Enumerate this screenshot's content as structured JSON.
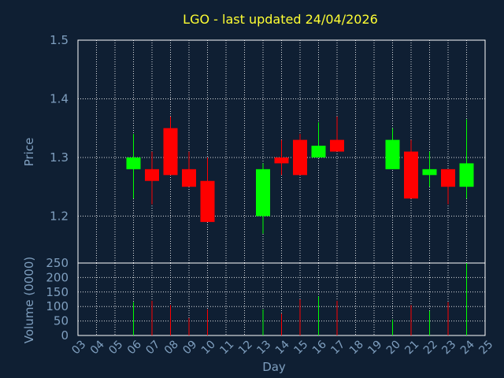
{
  "chart_data": {
    "type": "candlestick",
    "title": "LGO - last updated 24/04/2026",
    "xlabel": "Day",
    "price_panel": {
      "ylabel": "Price",
      "ylim": [
        1.12,
        1.5
      ],
      "yticks": [
        "1.2",
        "1.3",
        "1.4",
        "1.5"
      ],
      "ytick_values": [
        1.2,
        1.3,
        1.4,
        1.5
      ],
      "grid": true
    },
    "volume_panel": {
      "ylabel": "Volume (0000)",
      "ylim": [
        0,
        250
      ],
      "yticks": [
        "0",
        "50",
        "100",
        "150",
        "200",
        "250"
      ],
      "ytick_values": [
        0,
        50,
        100,
        150,
        200,
        250
      ],
      "grid": true
    },
    "x_domain": [
      3,
      25
    ],
    "xticks": [
      "03",
      "04",
      "05",
      "06",
      "07",
      "08",
      "09",
      "10",
      "11",
      "12",
      "13",
      "14",
      "15",
      "16",
      "17",
      "18",
      "19",
      "20",
      "21",
      "22",
      "23",
      "24",
      "25"
    ],
    "xtick_values": [
      3,
      4,
      5,
      6,
      7,
      8,
      9,
      10,
      11,
      12,
      13,
      14,
      15,
      16,
      17,
      18,
      19,
      20,
      21,
      22,
      23,
      24,
      25
    ],
    "colors": {
      "up": "#00ff00",
      "down": "#ff0000",
      "title": "#ffff33",
      "axis_text": "#7f9fbf",
      "background": "#0f1f33",
      "grid": "#ffffff"
    },
    "candles": [
      {
        "day": 6,
        "open": 1.28,
        "high": 1.34,
        "low": 1.23,
        "close": 1.3,
        "volume": 115
      },
      {
        "day": 7,
        "open": 1.28,
        "high": 1.31,
        "low": 1.22,
        "close": 1.26,
        "volume": 120
      },
      {
        "day": 8,
        "open": 1.35,
        "high": 1.37,
        "low": 1.27,
        "close": 1.27,
        "volume": 105
      },
      {
        "day": 9,
        "open": 1.28,
        "high": 1.31,
        "low": 1.25,
        "close": 1.25,
        "volume": 60
      },
      {
        "day": 10,
        "open": 1.26,
        "high": 1.3,
        "low": 1.19,
        "close": 1.19,
        "volume": 90
      },
      {
        "day": 13,
        "open": 1.2,
        "high": 1.29,
        "low": 1.17,
        "close": 1.28,
        "volume": 90
      },
      {
        "day": 14,
        "open": 1.3,
        "high": 1.33,
        "low": 1.27,
        "close": 1.29,
        "volume": 75
      },
      {
        "day": 15,
        "open": 1.33,
        "high": 1.34,
        "low": 1.27,
        "close": 1.27,
        "volume": 125
      },
      {
        "day": 16,
        "open": 1.3,
        "high": 1.36,
        "low": 1.3,
        "close": 1.32,
        "volume": 135
      },
      {
        "day": 17,
        "open": 1.33,
        "high": 1.37,
        "low": 1.31,
        "close": 1.31,
        "volume": 120
      },
      {
        "day": 20,
        "open": 1.28,
        "high": 1.35,
        "low": 1.28,
        "close": 1.33,
        "volume": 55
      },
      {
        "day": 21,
        "open": 1.31,
        "high": 1.33,
        "low": 1.23,
        "close": 1.23,
        "volume": 105
      },
      {
        "day": 22,
        "open": 1.27,
        "high": 1.31,
        "low": 1.25,
        "close": 1.28,
        "volume": 85
      },
      {
        "day": 23,
        "open": 1.28,
        "high": 1.28,
        "low": 1.22,
        "close": 1.25,
        "volume": 115
      },
      {
        "day": 24,
        "open": 1.25,
        "high": 1.365,
        "low": 1.23,
        "close": 1.29,
        "volume": 250
      }
    ]
  }
}
